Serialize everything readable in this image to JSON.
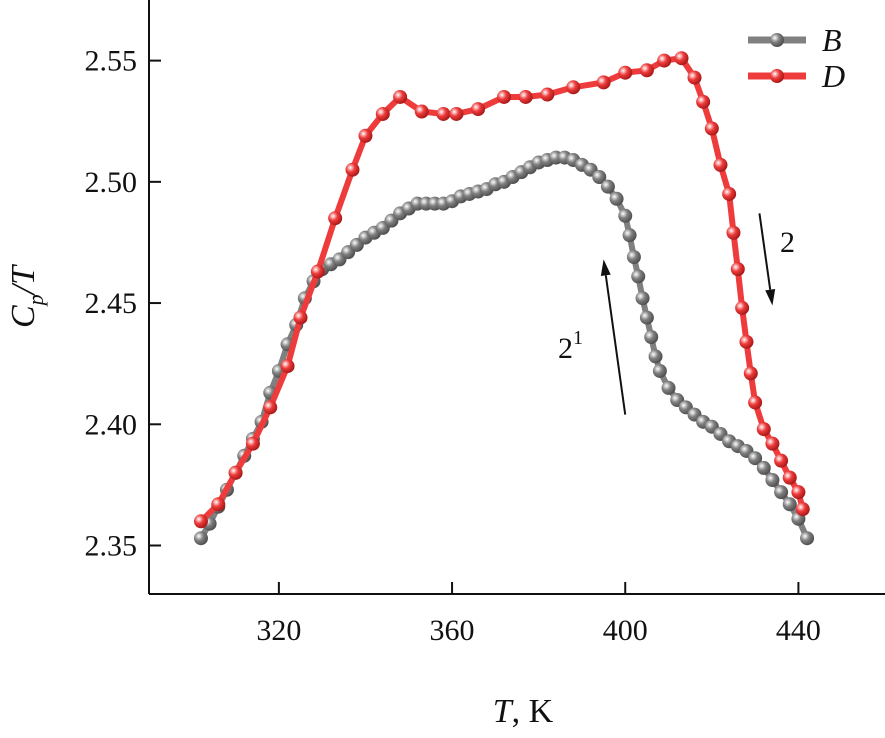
{
  "chart_data": {
    "type": "line",
    "xlabel": {
      "var": "T",
      "unit": ", K"
    },
    "ylabel": {
      "var": "C",
      "sub": "p",
      "tail": "/T"
    },
    "xlim": [
      290,
      460
    ],
    "ylim": [
      2.33,
      2.575
    ],
    "xticks": [
      "320",
      "360",
      "400",
      "440"
    ],
    "yticks": [
      "2.35",
      "2.40",
      "2.45",
      "2.50",
      "2.55"
    ],
    "legend": {
      "placement": "top-right"
    },
    "series": [
      {
        "name": "B",
        "color": "#808080",
        "x": [
          302,
          304,
          306,
          308,
          310,
          312,
          314,
          316,
          318,
          320,
          322,
          324,
          326,
          328,
          330,
          332,
          334,
          336,
          338,
          340,
          342,
          344,
          346,
          348,
          350,
          352,
          354,
          356,
          358,
          360,
          362,
          364,
          366,
          368,
          370,
          372,
          374,
          376,
          378,
          380,
          382,
          384,
          386,
          388,
          390,
          392,
          394,
          396,
          398,
          400,
          401,
          402,
          403,
          404,
          405,
          406,
          407,
          408,
          410,
          412,
          414,
          416,
          418,
          420,
          422,
          424,
          426,
          428,
          430,
          432,
          434,
          436,
          438,
          440,
          442
        ],
        "y": [
          2.353,
          2.359,
          2.366,
          2.373,
          2.38,
          2.387,
          2.394,
          2.401,
          2.413,
          2.422,
          2.433,
          2.441,
          2.452,
          2.459,
          2.464,
          2.466,
          2.468,
          2.471,
          2.474,
          2.477,
          2.479,
          2.481,
          2.484,
          2.487,
          2.489,
          2.491,
          2.491,
          2.491,
          2.491,
          2.492,
          2.494,
          2.495,
          2.496,
          2.497,
          2.499,
          2.5,
          2.502,
          2.504,
          2.506,
          2.508,
          2.509,
          2.51,
          2.51,
          2.509,
          2.507,
          2.505,
          2.502,
          2.498,
          2.493,
          2.486,
          2.478,
          2.469,
          2.461,
          2.452,
          2.444,
          2.436,
          2.428,
          2.422,
          2.415,
          2.41,
          2.407,
          2.404,
          2.401,
          2.399,
          2.396,
          2.393,
          2.391,
          2.389,
          2.386,
          2.382,
          2.377,
          2.372,
          2.367,
          2.361,
          2.353
        ]
      },
      {
        "name": "D",
        "color": "#ee3b3b",
        "x": [
          302,
          306,
          310,
          314,
          318,
          322,
          325,
          329,
          333,
          337,
          340,
          344,
          348,
          353,
          358,
          361,
          366,
          372,
          377,
          382,
          388,
          395,
          400,
          405,
          409,
          413,
          416,
          418,
          420,
          422,
          424,
          425,
          426,
          427,
          428,
          429,
          430,
          432,
          434,
          436,
          438,
          440,
          441
        ],
        "y": [
          2.36,
          2.367,
          2.38,
          2.392,
          2.407,
          2.424,
          2.444,
          2.463,
          2.485,
          2.505,
          2.519,
          2.528,
          2.535,
          2.529,
          2.528,
          2.528,
          2.53,
          2.535,
          2.535,
          2.536,
          2.539,
          2.541,
          2.545,
          2.546,
          2.55,
          2.551,
          2.543,
          2.533,
          2.522,
          2.507,
          2.495,
          2.479,
          2.464,
          2.448,
          2.434,
          2.421,
          2.409,
          2.398,
          2.392,
          2.385,
          2.378,
          2.372,
          2.365
        ]
      }
    ],
    "annotations": [
      {
        "text": "2",
        "sup": "1",
        "direction": "up",
        "x0": 400,
        "y0": 2.404,
        "x1": 395,
        "y1": 2.468
      },
      {
        "text": "2",
        "sup": "",
        "direction": "down",
        "x0": 431,
        "y0": 2.487,
        "x1": 434,
        "y1": 2.449
      }
    ]
  }
}
